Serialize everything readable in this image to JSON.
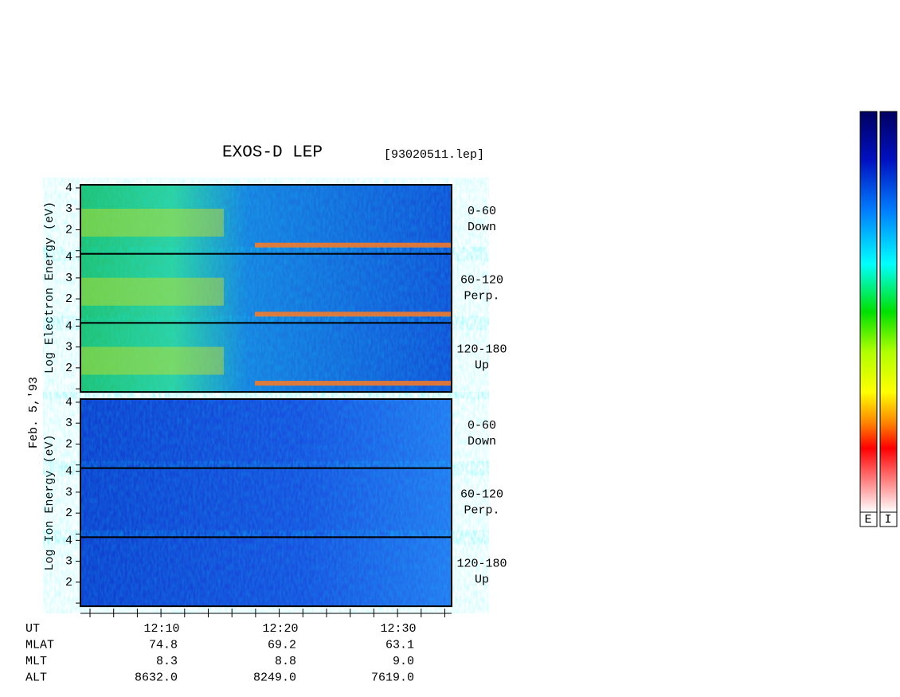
{
  "header": {
    "title": "EXOS-D LEP",
    "file": "[93020511.lep]"
  },
  "date": "Feb. 5,'93",
  "energy_ticks": [
    "4",
    "3",
    "2"
  ],
  "electron": {
    "axis_label": "Log Electron Energy (eV)",
    "panels": [
      {
        "angle": "0-60",
        "direction": "Down"
      },
      {
        "angle": "60-120",
        "direction": "Perp."
      },
      {
        "angle": "120-180",
        "direction": "Up"
      }
    ]
  },
  "ion": {
    "axis_label": "Log Ion Energy (eV)",
    "panels": [
      {
        "angle": "0-60",
        "direction": "Down"
      },
      {
        "angle": "60-120",
        "direction": "Perp."
      },
      {
        "angle": "120-180",
        "direction": "Up"
      }
    ]
  },
  "ephemeris": {
    "rows": [
      {
        "name": "UT",
        "values": [
          "12:10",
          "12:20",
          "12:30"
        ]
      },
      {
        "name": "MLAT",
        "values": [
          "74.8",
          "69.2",
          "63.1"
        ]
      },
      {
        "name": "MLT",
        "values": [
          "8.3",
          "8.8",
          "9.0"
        ]
      },
      {
        "name": "ALT",
        "values": [
          "8632.0",
          "8249.0",
          "7619.0"
        ]
      }
    ]
  },
  "colorbar_labels": [
    "E",
    "I"
  ]
}
